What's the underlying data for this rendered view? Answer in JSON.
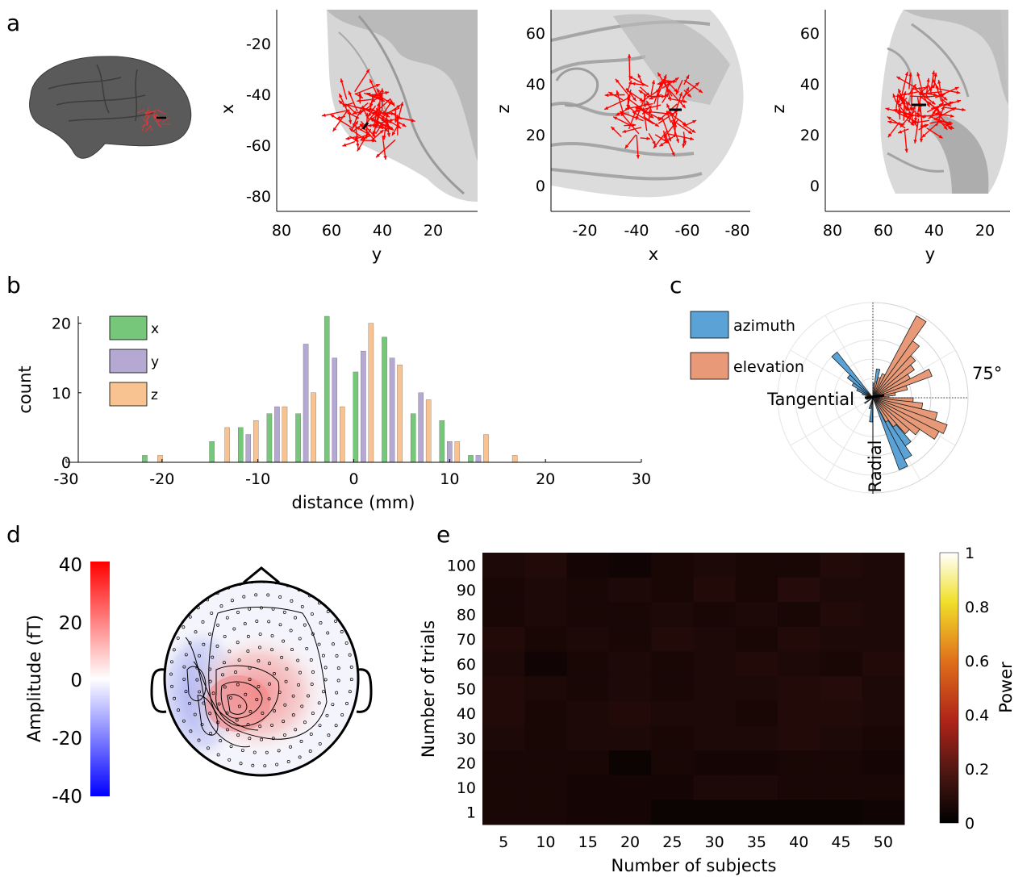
{
  "panel_labels": {
    "a": "a",
    "b": "b",
    "c": "c",
    "d": "d",
    "e": "e"
  },
  "chart_data": [
    {
      "panel": "a",
      "type": "scatter",
      "description_view": "dipole orientations on brain surface",
      "subplots": [
        {
          "xlabel": "y",
          "ylabel": "x",
          "xticks": [
            "80",
            "60",
            "40",
            "20"
          ],
          "yticks": [
            "-20",
            "-40",
            "-60",
            "-80"
          ]
        },
        {
          "xlabel": "x",
          "ylabel": "z",
          "xticks": [
            "-20",
            "-40",
            "-60",
            "-80"
          ],
          "yticks": [
            "60",
            "40",
            "20",
            "0"
          ]
        },
        {
          "xlabel": "y",
          "ylabel": "z",
          "xticks": [
            "80",
            "60",
            "40",
            "20"
          ],
          "yticks": [
            "60",
            "40",
            "20",
            "0"
          ]
        }
      ]
    },
    {
      "panel": "b",
      "type": "bar",
      "xlabel": "distance (mm)",
      "ylabel": "count",
      "xlim": [
        -30,
        30
      ],
      "ylim": [
        0,
        21
      ],
      "xticks": [
        "-30",
        "-20",
        "-10",
        "0",
        "10",
        "20",
        "30"
      ],
      "yticks": [
        "0",
        "10",
        "20"
      ],
      "legend_position": "top-left",
      "bin_centers": [
        -21,
        -14,
        -11,
        -8,
        -5,
        -2,
        1,
        4,
        7,
        10,
        13,
        16,
        19
      ],
      "series": [
        {
          "name": "x",
          "color": "#77c77b",
          "values": [
            1,
            3,
            5,
            7,
            7,
            21,
            13,
            18,
            7,
            6,
            1,
            0,
            0
          ]
        },
        {
          "name": "y",
          "color": "#b5a9d3",
          "values": [
            0,
            0,
            4,
            8,
            17,
            15,
            16,
            15,
            10,
            3,
            1,
            0,
            0
          ]
        },
        {
          "name": "z",
          "color": "#f9c291",
          "values": [
            1,
            5,
            6,
            8,
            10,
            8,
            20,
            14,
            9,
            3,
            4,
            1,
            0
          ]
        }
      ]
    },
    {
      "panel": "c",
      "type": "polar-histogram",
      "angle_label": "75°",
      "label_tangential": "Tangential",
      "label_radial": "Radial",
      "series": [
        {
          "name": "azimuth",
          "color": "#5ba3d6"
        },
        {
          "name": "elevation",
          "color": "#e89a78"
        }
      ]
    },
    {
      "panel": "d",
      "type": "heatmap",
      "description_view": "MEG topography",
      "colorbar_label": "Amplitude (fT)",
      "colorbar_ticks": [
        "40",
        "20",
        "0",
        "-20",
        "-40"
      ],
      "clim": [
        -40,
        40
      ]
    },
    {
      "panel": "e",
      "type": "heatmap",
      "xlabel": "Number of subjects",
      "ylabel": "Number of trials",
      "xticks": [
        "5",
        "10",
        "15",
        "20",
        "25",
        "30",
        "35",
        "40",
        "45",
        "50"
      ],
      "yticks": [
        "100",
        "90",
        "80",
        "70",
        "60",
        "50",
        "40",
        "30",
        "20",
        "10",
        "1"
      ],
      "colorbar_label": "Power",
      "colorbar_ticks": [
        "1",
        "0.8",
        "0.6",
        "0.4",
        "0.2",
        "0"
      ],
      "clim": [
        0,
        1
      ],
      "values": [
        [
          0.07,
          0.08,
          0.05,
          0.04,
          0.06,
          0.07,
          0.06,
          0.06,
          0.08,
          0.07
        ],
        [
          0.06,
          0.07,
          0.06,
          0.07,
          0.06,
          0.08,
          0.06,
          0.09,
          0.07,
          0.07
        ],
        [
          0.06,
          0.07,
          0.06,
          0.06,
          0.07,
          0.06,
          0.07,
          0.06,
          0.08,
          0.07
        ],
        [
          0.08,
          0.06,
          0.07,
          0.06,
          0.08,
          0.07,
          0.06,
          0.08,
          0.07,
          0.07
        ],
        [
          0.07,
          0.04,
          0.06,
          0.07,
          0.06,
          0.07,
          0.08,
          0.07,
          0.06,
          0.08
        ],
        [
          0.08,
          0.07,
          0.06,
          0.07,
          0.06,
          0.07,
          0.07,
          0.08,
          0.09,
          0.07
        ],
        [
          0.08,
          0.06,
          0.07,
          0.08,
          0.07,
          0.07,
          0.06,
          0.08,
          0.08,
          0.07
        ],
        [
          0.07,
          0.06,
          0.07,
          0.07,
          0.06,
          0.07,
          0.07,
          0.08,
          0.07,
          0.06
        ],
        [
          0.06,
          0.06,
          0.06,
          0.03,
          0.06,
          0.05,
          0.05,
          0.06,
          0.06,
          0.05
        ],
        [
          0.06,
          0.06,
          0.05,
          0.05,
          0.05,
          0.07,
          0.07,
          0.06,
          0.06,
          0.06
        ],
        [
          0.06,
          0.06,
          0.05,
          0.05,
          0.03,
          0.03,
          0.03,
          0.03,
          0.03,
          0.04
        ]
      ]
    }
  ]
}
